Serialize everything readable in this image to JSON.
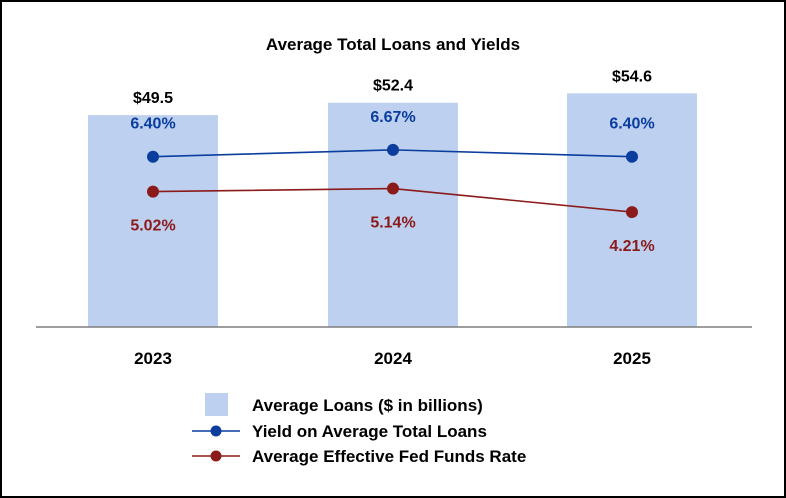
{
  "chart_data": {
    "type": "bar",
    "title": "Average Total Loans and Yields",
    "categories": [
      "2023",
      "2024",
      "2025"
    ],
    "xlabel": "",
    "ylabel": "",
    "series": [
      {
        "name": "Average Loans ($ in billions)",
        "kind": "bar",
        "values": [
          49.5,
          52.4,
          54.6
        ],
        "labels": [
          "$49.5",
          "$52.4",
          "$54.6"
        ],
        "color": "#bdd0f0"
      },
      {
        "name": "Yield on Average Total Loans",
        "kind": "line",
        "values": [
          6.4,
          6.67,
          6.4
        ],
        "labels": [
          "6.40%",
          "6.67%",
          "6.40%"
        ],
        "color": "#0a3d9e"
      },
      {
        "name": "Average Effective Fed Funds Rate",
        "kind": "line",
        "values": [
          5.02,
          5.14,
          4.21
        ],
        "labels": [
          "5.02%",
          "5.14%",
          "4.21%"
        ],
        "color": "#8b1a1a"
      }
    ],
    "bar_axis_range": [
      0,
      60
    ],
    "rate_axis_range": [
      -4,
      9
    ],
    "grid": false,
    "legend_position": "bottom-center"
  }
}
